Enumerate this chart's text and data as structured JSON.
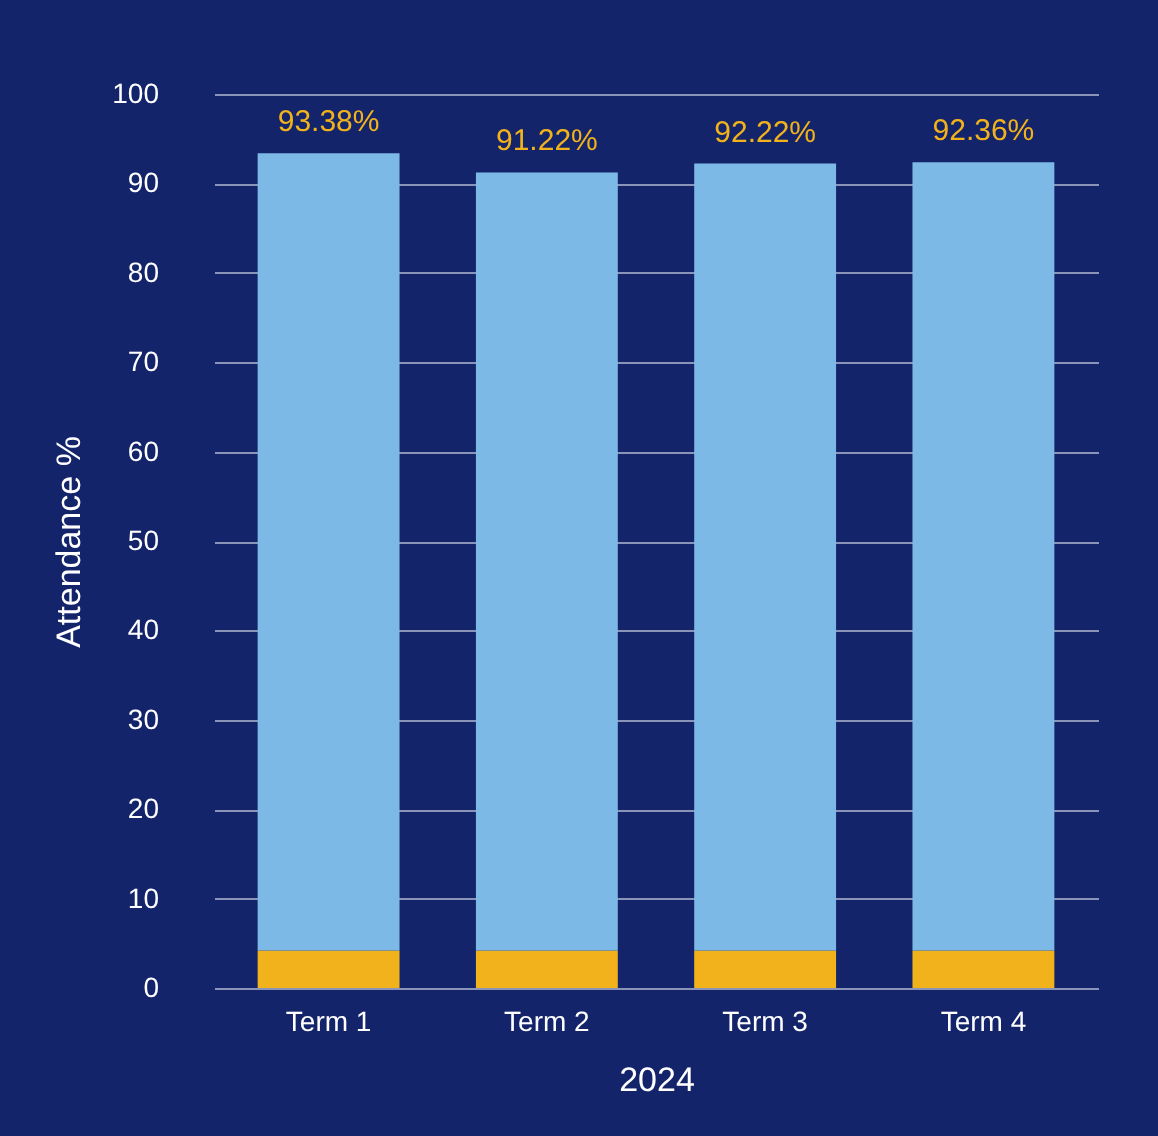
{
  "chart_data": {
    "type": "bar",
    "stacked": true,
    "xlabel": "2024",
    "ylabel": "Attendance %",
    "categories": [
      "Term 1",
      "Term 2",
      "Term 3",
      "Term 4"
    ],
    "series": [
      {
        "color": "#f2b21b",
        "values": [
          4.2,
          4.2,
          4.2,
          4.2
        ]
      },
      {
        "color": "#7db9e6",
        "values": [
          89.18,
          87.02,
          88.02,
          88.16
        ]
      }
    ],
    "totals": [
      "93.38%",
      "91.22%",
      "92.22%",
      "92.36%"
    ],
    "ylim": [
      0,
      100
    ],
    "yticks": [
      0,
      10,
      20,
      30,
      40,
      50,
      60,
      70,
      80,
      90,
      100
    ],
    "grid": "y"
  }
}
